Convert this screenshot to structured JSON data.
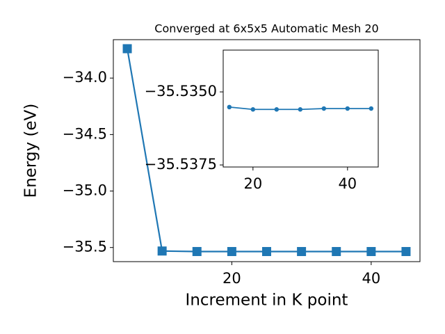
{
  "chart_data": [
    {
      "type": "line",
      "title": "Converged at 6x5x5 Automatic Mesh 20",
      "x_label": "Increment in K point",
      "y_label": "Energy (eV)",
      "x": [
        5,
        10,
        15,
        20,
        25,
        30,
        35,
        40,
        45
      ],
      "series": [
        {
          "color": "#1f77b4",
          "marker": "square",
          "values": [
            -33.74,
            -35.531,
            -35.5355,
            -35.5356,
            -35.5356,
            -35.5356,
            -35.5356,
            -35.5356,
            -35.5356
          ]
        }
      ],
      "xlim": [
        3,
        47
      ],
      "xticks": [
        20,
        40
      ],
      "ylim": [
        -35.625,
        -33.66
      ],
      "yticks": [
        {
          "value": -34.0,
          "label": "−34.0"
        },
        {
          "value": -34.5,
          "label": "−34.5"
        },
        {
          "value": -35.0,
          "label": "−35.0"
        },
        {
          "value": -35.5,
          "label": "−35.5"
        }
      ]
    },
    {
      "type": "line",
      "x": [
        15,
        20,
        25,
        30,
        35,
        40,
        45
      ],
      "series": [
        {
          "color": "#1f77b4",
          "marker": "circle",
          "values": [
            -35.53552,
            -35.5356,
            -35.5356,
            -35.5356,
            -35.53557,
            -35.53557,
            -35.53557
          ]
        }
      ],
      "xlim": [
        13.7,
        46.5
      ],
      "xticks": [
        20,
        40
      ],
      "ylim": [
        -35.53757,
        -35.53357
      ],
      "yticks": [
        {
          "value": -35.5375,
          "label": "−35.5375"
        },
        {
          "value": -35.535,
          "label": "−35.5350"
        }
      ]
    }
  ]
}
